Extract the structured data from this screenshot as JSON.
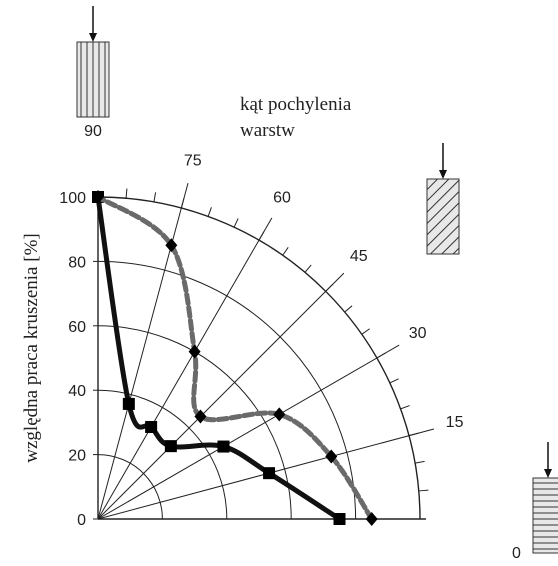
{
  "chart_data": {
    "type": "polar-line",
    "title": "",
    "ylabel": "względna praca kruszenia   [%]",
    "angle_label_line1": "kąt pochylenia",
    "angle_label_line2": "warstw",
    "radial_ticks": [
      "0",
      "20",
      "40",
      "60",
      "80",
      "100"
    ],
    "rlim": [
      0,
      100
    ],
    "angle_ticks_deg": [
      "0",
      "15",
      "30",
      "45",
      "60",
      "75",
      "90"
    ],
    "grid": true,
    "series": [
      {
        "color": "#111111",
        "style": "solid",
        "marker": "square",
        "points": [
          {
            "angle": 0,
            "r": 75
          },
          {
            "angle": 15,
            "r": 55
          },
          {
            "angle": 30,
            "r": 45
          },
          {
            "angle": 45,
            "r": 32
          },
          {
            "angle": 60,
            "r": 33
          },
          {
            "angle": 75,
            "r": 37
          },
          {
            "angle": 90,
            "r": 100
          }
        ]
      },
      {
        "color": "#6a6a6a",
        "style": "dashed",
        "marker": "diamond",
        "points": [
          {
            "angle": 0,
            "r": 85
          },
          {
            "angle": 15,
            "r": 75
          },
          {
            "angle": 30,
            "r": 65
          },
          {
            "angle": 45,
            "r": 45
          },
          {
            "angle": 60,
            "r": 60
          },
          {
            "angle": 75,
            "r": 88
          },
          {
            "angle": 90,
            "r": 100
          }
        ]
      }
    ]
  },
  "colors": {
    "axis": "#222222",
    "grid": "#222222",
    "specimen_fill": "#e8e8e8",
    "specimen_stroke": "#333333"
  },
  "specimens": [
    {
      "angle": 90,
      "hatch": "vertical"
    },
    {
      "angle": 45,
      "hatch": "diagonal"
    },
    {
      "angle": 0,
      "hatch": "horizontal"
    }
  ]
}
